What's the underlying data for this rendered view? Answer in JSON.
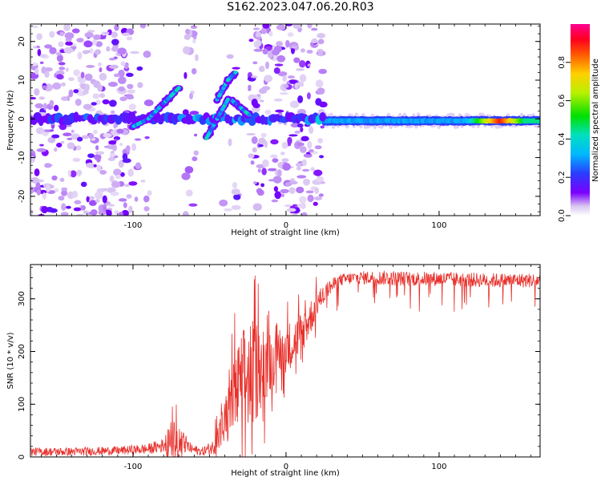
{
  "title": "S162.2023.047.06.20.R03",
  "colors": {
    "snr_line": "#e8302b",
    "axis": "#000000"
  },
  "chart_data": [
    {
      "type": "heatmap",
      "xlabel": "Height of straight line (km)",
      "ylabel": "Frequency (Hz)",
      "xlim": [
        -167,
        166
      ],
      "ylim": [
        -25,
        24.5
      ],
      "xticks": [
        -100,
        0,
        100
      ],
      "xtick_labels": [
        "-100",
        "0",
        "100"
      ],
      "yticks": [
        -20,
        -10,
        0,
        10,
        20
      ],
      "ytick_labels": [
        "-20",
        "-10",
        "0",
        "10",
        "20"
      ],
      "colorbar": {
        "label": "Normalized spectral amplitude",
        "range": [
          0,
          1
        ],
        "ticks": [
          0.0,
          0.2,
          0.4,
          0.6,
          0.8
        ],
        "tick_labels": [
          "0.0",
          "0.2",
          "0.4",
          "0.6",
          "0.8"
        ],
        "colormap": "rainbow (white-purple to magenta)"
      },
      "features": [
        {
          "description": "steady carrier line",
          "x": [
            25,
            166
          ],
          "frequency": -0.5,
          "amplitude": 0.3,
          "peak_amplitude": 0.9,
          "peak_x": [
            130,
            150
          ]
        },
        {
          "description": "carrier spots",
          "x": [
            -167,
            25
          ],
          "frequency": 0,
          "amplitude": 0.3
        },
        {
          "description": "rising branch",
          "points": [
            [
              -100,
              -2
            ],
            [
              -90,
              0
            ],
            [
              -80,
              4
            ],
            [
              -70,
              8
            ]
          ]
        },
        {
          "description": "upper branch",
          "points": [
            [
              -45,
              5
            ],
            [
              -38,
              10
            ],
            [
              -33,
              12
            ]
          ]
        },
        {
          "description": "descending branch",
          "points": [
            [
              -36,
              5
            ],
            [
              -30,
              3
            ],
            [
              -24,
              1
            ]
          ]
        },
        {
          "description": "lower branch",
          "points": [
            [
              -52,
              -5
            ],
            [
              -45,
              0
            ],
            [
              -38,
              5
            ]
          ]
        }
      ]
    },
    {
      "type": "line",
      "xlabel": "Height of straight line (km)",
      "ylabel": "SNR (10 * v/v)",
      "xlim": [
        -167,
        166
      ],
      "ylim": [
        0,
        365
      ],
      "xticks": [
        -100,
        0,
        100
      ],
      "xtick_labels": [
        "-100",
        "0",
        "100"
      ],
      "yticks": [
        0,
        100,
        200,
        300
      ],
      "ytick_labels": [
        "0",
        "100",
        "200",
        "300"
      ],
      "series": [
        {
          "x": [
            -167,
            -140,
            -110,
            -90,
            -80,
            -75,
            -70,
            -62,
            -55,
            -48,
            -42,
            -36,
            -30,
            -25,
            -20,
            -14,
            -8,
            -2,
            4,
            10,
            16,
            22,
            28,
            35,
            45,
            60,
            80,
            100,
            120,
            140,
            166
          ],
          "y": [
            10,
            10,
            12,
            15,
            22,
            40,
            35,
            15,
            10,
            18,
            50,
            90,
            140,
            155,
            165,
            175,
            195,
            205,
            215,
            235,
            265,
            300,
            320,
            335,
            340,
            340,
            338,
            338,
            336,
            335,
            335
          ],
          "noise": [
            8,
            8,
            8,
            10,
            14,
            30,
            28,
            10,
            8,
            14,
            40,
            70,
            90,
            110,
            100,
            70,
            60,
            50,
            45,
            40,
            35,
            20,
            15,
            12,
            12,
            14,
            14,
            14,
            14,
            14,
            14
          ]
        }
      ]
    }
  ]
}
